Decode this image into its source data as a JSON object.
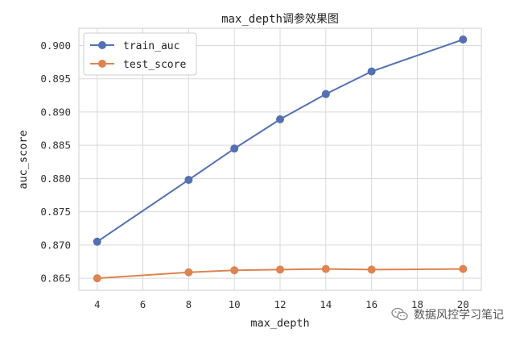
{
  "chart_data": {
    "type": "line",
    "title": "max_depth调参效果图",
    "xlabel": "max_depth",
    "ylabel": "auc_score",
    "x": [
      4,
      8,
      10,
      12,
      14,
      16,
      20
    ],
    "xticks": [
      4,
      6,
      8,
      10,
      12,
      14,
      16,
      18,
      20
    ],
    "xlim": [
      3.2,
      20.8
    ],
    "yticks": [
      0.865,
      0.87,
      0.875,
      0.88,
      0.885,
      0.89,
      0.895,
      0.9
    ],
    "ylim": [
      0.8632,
      0.9026
    ],
    "grid": true,
    "legend_position": "top-left",
    "series": [
      {
        "name": "train_auc",
        "color": "#5470b3",
        "values": [
          0.8705,
          0.8798,
          0.8845,
          0.8889,
          0.8927,
          0.8961,
          0.9009
        ]
      },
      {
        "name": "test_score",
        "color": "#dd8452",
        "values": [
          0.865,
          0.8659,
          0.8662,
          0.8663,
          0.8664,
          0.8663,
          0.8664
        ]
      }
    ]
  },
  "watermark": {
    "text": "数据风控学习笔记",
    "icon": "wechat-icon"
  }
}
